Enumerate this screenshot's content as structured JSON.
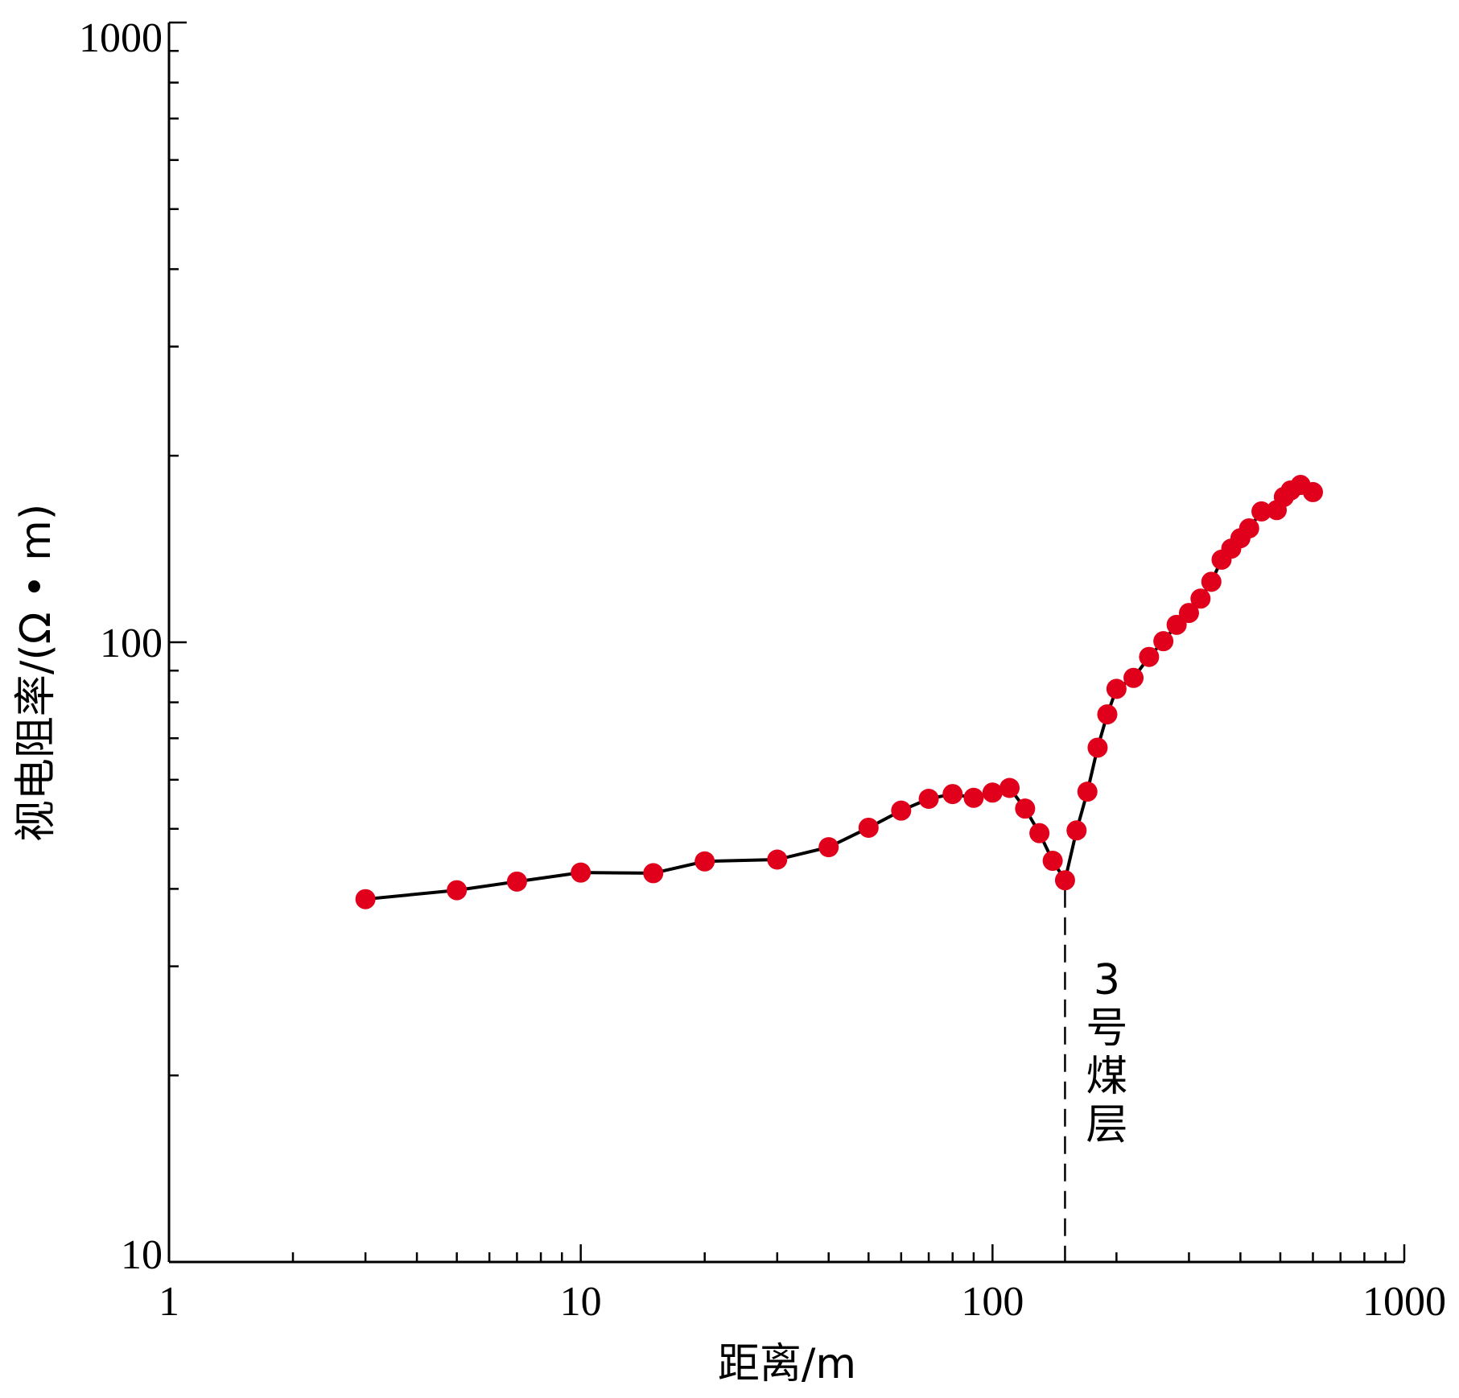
{
  "chart_data": {
    "type": "line",
    "xlabel": "距离/m",
    "ylabel": "视电阻率/(Ω • m)",
    "x_scale": "log",
    "y_scale": "log",
    "xlim": [
      1,
      1000
    ],
    "ylim": [
      10,
      1000
    ],
    "x_tick_labels": [
      "1",
      "10",
      "100",
      "1000"
    ],
    "y_tick_labels": [
      "10",
      "100",
      "1000"
    ],
    "grid": false,
    "marker_color": "#e0001b",
    "line_color": "#000000",
    "series": [
      {
        "x": [
          3,
          5,
          7,
          10,
          15,
          20,
          30,
          40,
          50,
          60,
          70,
          80,
          90,
          100,
          110,
          120,
          130,
          140,
          150,
          160,
          170,
          180,
          190,
          200,
          220,
          240,
          260,
          280,
          300,
          320,
          340,
          360,
          380,
          400,
          420,
          450,
          490,
          510,
          530,
          560,
          600
        ],
        "y": [
          38.5,
          39.8,
          41.1,
          42.5,
          42.4,
          44.3,
          44.6,
          46.7,
          50.2,
          53.5,
          55.9,
          56.9,
          56.1,
          57.2,
          58.2,
          53.9,
          49.2,
          44.4,
          41.3,
          49.7,
          57.4,
          67.6,
          76.5,
          84.1,
          87.6,
          94.7,
          100.4,
          106.7,
          111.5,
          117.6,
          125.2,
          135.9,
          141.6,
          147.2,
          152.7,
          162.6,
          163.4,
          171.6,
          175.8,
          179.4,
          174.7
        ]
      }
    ],
    "annotations": [
      {
        "text": "3",
        "x": 150
      },
      {
        "text": "号",
        "x": 150
      },
      {
        "text": "煤",
        "x": 150
      },
      {
        "text": "层",
        "x": 150
      }
    ]
  }
}
